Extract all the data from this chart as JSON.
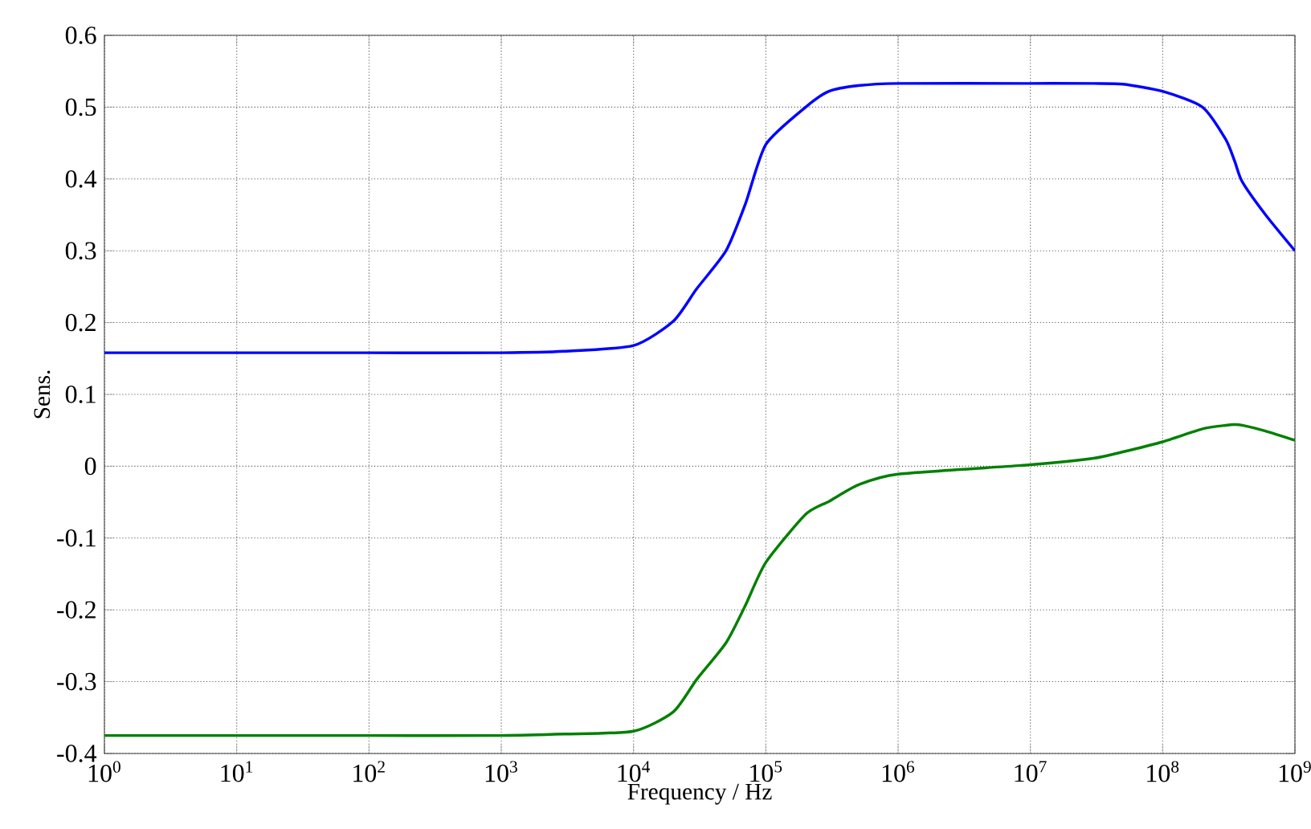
{
  "chart_data": {
    "type": "line",
    "xlabel": "Frequency / Hz",
    "ylabel": "Sens.",
    "log": "x",
    "grid": true,
    "line_style": "solid",
    "marker": "none",
    "xlim": [
      1,
      1000000000
    ],
    "ylim": [
      -0.4,
      0.6
    ],
    "xticks": [
      {
        "value": 1,
        "label": "10$^{0}$"
      },
      {
        "value": 10,
        "label": "10$^{1}$"
      },
      {
        "value": 100,
        "label": "10$^{2}$"
      },
      {
        "value": 1000,
        "label": "10$^{3}$"
      },
      {
        "value": 10000,
        "label": "10$^{4}$"
      },
      {
        "value": 100000,
        "label": "10$^{5}$"
      },
      {
        "value": 1000000,
        "label": "10$^{6}$"
      },
      {
        "value": 10000000,
        "label": "10$^{7}$"
      },
      {
        "value": 100000000,
        "label": "10$^{8}$"
      },
      {
        "value": 1000000000,
        "label": "10$^{9}$"
      }
    ],
    "yticks": [
      -0.4,
      -0.3,
      -0.2,
      -0.1,
      0,
      0.1,
      0.2,
      0.3,
      0.4,
      0.5,
      0.6
    ],
    "x": [
      1,
      10,
      100,
      1000,
      3000,
      10000,
      20000,
      30000,
      50000,
      70000,
      100000,
      200000,
      300000,
      500000,
      1000000,
      10000000,
      30000000,
      50000000,
      100000000,
      200000000,
      300000000,
      350000000,
      400000000,
      600000000,
      1000000000
    ],
    "series": [
      {
        "color": "#0000ff",
        "values": [
          0.158,
          0.158,
          0.158,
          0.158,
          0.16,
          0.168,
          0.202,
          0.247,
          0.3,
          0.365,
          0.448,
          0.5,
          0.522,
          0.53,
          0.533,
          0.533,
          0.533,
          0.532,
          0.522,
          0.5,
          0.455,
          0.425,
          0.396,
          0.35,
          0.3
        ]
      },
      {
        "color": "#008000",
        "values": [
          -0.375,
          -0.375,
          -0.375,
          -0.375,
          -0.373,
          -0.369,
          -0.342,
          -0.297,
          -0.246,
          -0.194,
          -0.134,
          -0.067,
          -0.049,
          -0.026,
          -0.011,
          0.002,
          0.011,
          0.02,
          0.034,
          0.052,
          0.057,
          0.058,
          0.057,
          0.049,
          0.036
        ]
      }
    ]
  }
}
